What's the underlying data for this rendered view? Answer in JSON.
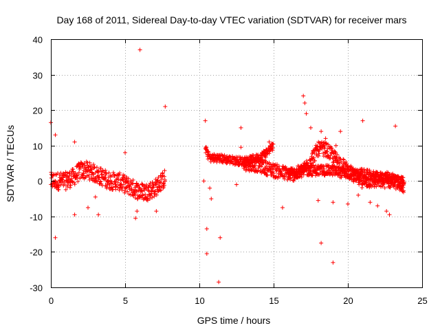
{
  "chart_data": {
    "type": "scatter",
    "title": "Day 168 of 2011, Sidereal Day-to-day VTEC variation (SDTVAR) for receiver mars",
    "xlabel": "GPS time / hours",
    "ylabel": "SDTVAR / TECUs",
    "xlim": [
      0,
      25
    ],
    "ylim": [
      -30,
      40
    ],
    "xticks": [
      "0",
      "5",
      "10",
      "15",
      "20",
      "25"
    ],
    "yticks": [
      "-30",
      "-20",
      "-10",
      "0",
      "10",
      "20",
      "30",
      "40"
    ],
    "grid": true,
    "marker": "+",
    "color": "#ff0000",
    "bands": [
      {
        "name": "segment-a",
        "points": [
          [
            0.0,
            0
          ],
          [
            0.5,
            0
          ],
          [
            1.0,
            0
          ],
          [
            1.5,
            1
          ],
          [
            2.0,
            3
          ],
          [
            2.5,
            3
          ],
          [
            3.0,
            2
          ],
          [
            3.5,
            1
          ],
          [
            4.0,
            0
          ],
          [
            4.5,
            0
          ],
          [
            5.0,
            -1
          ],
          [
            5.5,
            -2
          ],
          [
            6.0,
            -3
          ],
          [
            6.5,
            -3
          ],
          [
            7.0,
            -2
          ],
          [
            7.5,
            0
          ],
          [
            7.7,
            1
          ]
        ],
        "half_width": 2.5
      },
      {
        "name": "segment-b",
        "points": [
          [
            10.4,
            9
          ],
          [
            10.7,
            6.5
          ],
          [
            11.2,
            6.5
          ],
          [
            12.0,
            6
          ],
          [
            13.0,
            5.5
          ],
          [
            14.0,
            6.5
          ],
          [
            14.5,
            8
          ],
          [
            15.0,
            10
          ]
        ],
        "half_width": 1.2
      },
      {
        "name": "segment-c",
        "points": [
          [
            13.0,
            5
          ],
          [
            14.0,
            4.5
          ],
          [
            15.0,
            3
          ],
          [
            16.0,
            2
          ],
          [
            16.5,
            2
          ],
          [
            17.0,
            3
          ],
          [
            17.5,
            6
          ],
          [
            18.0,
            9
          ],
          [
            18.5,
            9
          ],
          [
            19.0,
            7
          ],
          [
            19.5,
            5
          ],
          [
            20.0,
            3
          ],
          [
            20.5,
            1
          ],
          [
            21.0,
            0
          ],
          [
            22.0,
            0
          ],
          [
            23.0,
            0
          ],
          [
            23.8,
            -1
          ]
        ],
        "half_width": 2.0
      },
      {
        "name": "segment-d",
        "points": [
          [
            16.0,
            2
          ],
          [
            17.0,
            3
          ],
          [
            18.0,
            3
          ],
          [
            19.0,
            3
          ],
          [
            20.0,
            2
          ],
          [
            21.0,
            2
          ],
          [
            22.0,
            1
          ],
          [
            23.0,
            1
          ],
          [
            23.8,
            -2
          ]
        ],
        "half_width": 1.5
      }
    ],
    "outliers": [
      [
        6.0,
        37
      ],
      [
        7.7,
        21
      ],
      [
        10.4,
        17
      ],
      [
        10.5,
        -13.5
      ],
      [
        10.5,
        -20.5
      ],
      [
        11.3,
        -28.5
      ],
      [
        11.4,
        -16
      ],
      [
        12.8,
        15
      ],
      [
        17.0,
        24
      ],
      [
        17.1,
        22
      ],
      [
        17.2,
        19
      ],
      [
        18.2,
        -17.5
      ],
      [
        18.5,
        12
      ],
      [
        19.0,
        -23
      ],
      [
        19.5,
        14
      ],
      [
        21.0,
        17
      ],
      [
        23.2,
        15.5
      ],
      [
        0.0,
        16.5
      ],
      [
        0.3,
        -16
      ],
      [
        0.3,
        13
      ],
      [
        1.6,
        11
      ],
      [
        1.6,
        -9.5
      ],
      [
        2.5,
        -7.5
      ],
      [
        3.0,
        -4.5
      ],
      [
        3.2,
        -9.5
      ],
      [
        5.0,
        8
      ],
      [
        5.7,
        -10.5
      ],
      [
        5.8,
        -8.5
      ],
      [
        7.1,
        -8.5
      ],
      [
        10.7,
        -2
      ],
      [
        10.8,
        -5
      ],
      [
        10.3,
        0
      ],
      [
        12.5,
        -1
      ],
      [
        15.6,
        -7.5
      ],
      [
        18.0,
        -5.5
      ],
      [
        19.0,
        -6
      ],
      [
        20.0,
        -6.5
      ],
      [
        20.7,
        -4
      ],
      [
        21.5,
        -6
      ],
      [
        22.0,
        -7
      ],
      [
        22.6,
        -8.5
      ],
      [
        22.8,
        -9.5
      ],
      [
        12.8,
        9.5
      ],
      [
        14.7,
        11
      ],
      [
        17.5,
        15
      ],
      [
        18.2,
        14
      ],
      [
        19.2,
        10
      ]
    ]
  }
}
